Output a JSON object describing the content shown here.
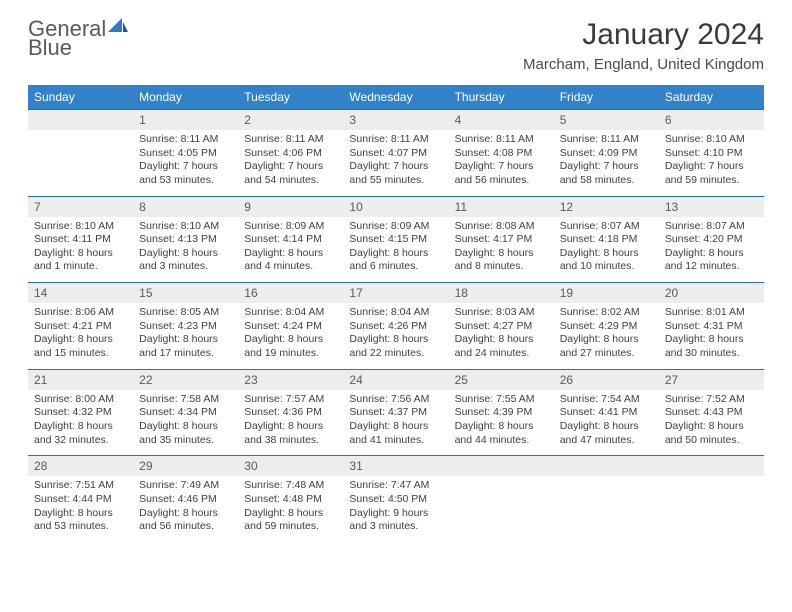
{
  "brand": {
    "part1": "General",
    "part2": "Blue"
  },
  "title": "January 2024",
  "location": "Marcham, England, United Kingdom",
  "colors": {
    "header_bg": "#3182c8",
    "header_text": "#ffffff",
    "row_border": "#2f6fa8",
    "daynum_bg": "#eceded",
    "text": "#3a3a3a",
    "logo_blue": "#2f7bbf"
  },
  "weekdays": [
    "Sunday",
    "Monday",
    "Tuesday",
    "Wednesday",
    "Thursday",
    "Friday",
    "Saturday"
  ],
  "weeks": [
    [
      null,
      {
        "n": "1",
        "sr": "8:11 AM",
        "ss": "4:05 PM",
        "dl": "7 hours and 53 minutes."
      },
      {
        "n": "2",
        "sr": "8:11 AM",
        "ss": "4:06 PM",
        "dl": "7 hours and 54 minutes."
      },
      {
        "n": "3",
        "sr": "8:11 AM",
        "ss": "4:07 PM",
        "dl": "7 hours and 55 minutes."
      },
      {
        "n": "4",
        "sr": "8:11 AM",
        "ss": "4:08 PM",
        "dl": "7 hours and 56 minutes."
      },
      {
        "n": "5",
        "sr": "8:11 AM",
        "ss": "4:09 PM",
        "dl": "7 hours and 58 minutes."
      },
      {
        "n": "6",
        "sr": "8:10 AM",
        "ss": "4:10 PM",
        "dl": "7 hours and 59 minutes."
      }
    ],
    [
      {
        "n": "7",
        "sr": "8:10 AM",
        "ss": "4:11 PM",
        "dl": "8 hours and 1 minute."
      },
      {
        "n": "8",
        "sr": "8:10 AM",
        "ss": "4:13 PM",
        "dl": "8 hours and 3 minutes."
      },
      {
        "n": "9",
        "sr": "8:09 AM",
        "ss": "4:14 PM",
        "dl": "8 hours and 4 minutes."
      },
      {
        "n": "10",
        "sr": "8:09 AM",
        "ss": "4:15 PM",
        "dl": "8 hours and 6 minutes."
      },
      {
        "n": "11",
        "sr": "8:08 AM",
        "ss": "4:17 PM",
        "dl": "8 hours and 8 minutes."
      },
      {
        "n": "12",
        "sr": "8:07 AM",
        "ss": "4:18 PM",
        "dl": "8 hours and 10 minutes."
      },
      {
        "n": "13",
        "sr": "8:07 AM",
        "ss": "4:20 PM",
        "dl": "8 hours and 12 minutes."
      }
    ],
    [
      {
        "n": "14",
        "sr": "8:06 AM",
        "ss": "4:21 PM",
        "dl": "8 hours and 15 minutes."
      },
      {
        "n": "15",
        "sr": "8:05 AM",
        "ss": "4:23 PM",
        "dl": "8 hours and 17 minutes."
      },
      {
        "n": "16",
        "sr": "8:04 AM",
        "ss": "4:24 PM",
        "dl": "8 hours and 19 minutes."
      },
      {
        "n": "17",
        "sr": "8:04 AM",
        "ss": "4:26 PM",
        "dl": "8 hours and 22 minutes."
      },
      {
        "n": "18",
        "sr": "8:03 AM",
        "ss": "4:27 PM",
        "dl": "8 hours and 24 minutes."
      },
      {
        "n": "19",
        "sr": "8:02 AM",
        "ss": "4:29 PM",
        "dl": "8 hours and 27 minutes."
      },
      {
        "n": "20",
        "sr": "8:01 AM",
        "ss": "4:31 PM",
        "dl": "8 hours and 30 minutes."
      }
    ],
    [
      {
        "n": "21",
        "sr": "8:00 AM",
        "ss": "4:32 PM",
        "dl": "8 hours and 32 minutes."
      },
      {
        "n": "22",
        "sr": "7:58 AM",
        "ss": "4:34 PM",
        "dl": "8 hours and 35 minutes."
      },
      {
        "n": "23",
        "sr": "7:57 AM",
        "ss": "4:36 PM",
        "dl": "8 hours and 38 minutes."
      },
      {
        "n": "24",
        "sr": "7:56 AM",
        "ss": "4:37 PM",
        "dl": "8 hours and 41 minutes."
      },
      {
        "n": "25",
        "sr": "7:55 AM",
        "ss": "4:39 PM",
        "dl": "8 hours and 44 minutes."
      },
      {
        "n": "26",
        "sr": "7:54 AM",
        "ss": "4:41 PM",
        "dl": "8 hours and 47 minutes."
      },
      {
        "n": "27",
        "sr": "7:52 AM",
        "ss": "4:43 PM",
        "dl": "8 hours and 50 minutes."
      }
    ],
    [
      {
        "n": "28",
        "sr": "7:51 AM",
        "ss": "4:44 PM",
        "dl": "8 hours and 53 minutes."
      },
      {
        "n": "29",
        "sr": "7:49 AM",
        "ss": "4:46 PM",
        "dl": "8 hours and 56 minutes."
      },
      {
        "n": "30",
        "sr": "7:48 AM",
        "ss": "4:48 PM",
        "dl": "8 hours and 59 minutes."
      },
      {
        "n": "31",
        "sr": "7:47 AM",
        "ss": "4:50 PM",
        "dl": "9 hours and 3 minutes."
      },
      null,
      null,
      null
    ]
  ],
  "labels": {
    "sunrise": "Sunrise:",
    "sunset": "Sunset:",
    "daylight": "Daylight:"
  }
}
